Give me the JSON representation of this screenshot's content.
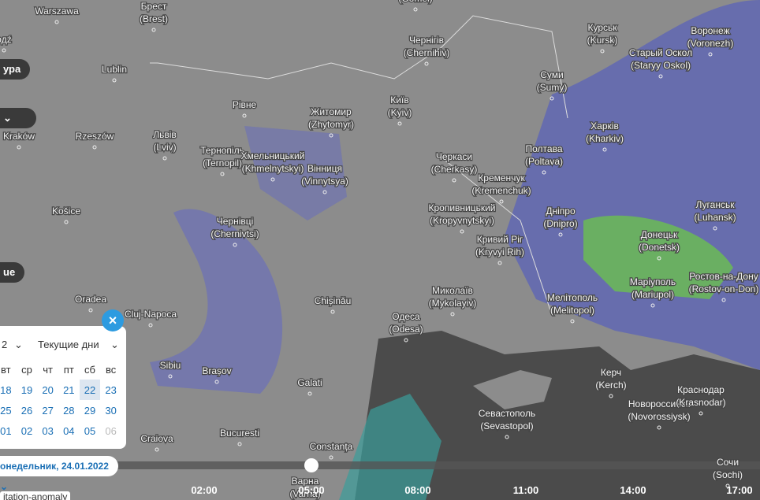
{
  "map": {
    "cities": [
      {
        "name": "Warszawa"
      },
      {
        "name": "Брест",
        "latin": "(Brest)"
      },
      {
        "name": "Lublin"
      },
      {
        "name": "Rzeszów"
      },
      {
        "name": "Kraków"
      },
      {
        "name": "Košice"
      },
      {
        "name": "Oradea"
      },
      {
        "name": "Cluj-Napoca"
      },
      {
        "name": "Sibiu"
      },
      {
        "name": "Brașov"
      },
      {
        "name": "Craiova"
      },
      {
        "name": "Bucuresti"
      },
      {
        "name": "Galati"
      },
      {
        "name": "Constanța"
      },
      {
        "name": "Chișinău"
      },
      {
        "name": "Варна",
        "latin": "(Varna)"
      },
      {
        "name": "Рівне"
      },
      {
        "name": "Львів",
        "latin": "(Lviv)"
      },
      {
        "name": "Тернопіль",
        "latin": "(Ternopil)"
      },
      {
        "name": "Хмельницький",
        "latin": "(Khmelnytskyi)"
      },
      {
        "name": "Житомир",
        "latin": "(Zhytomyr)"
      },
      {
        "name": "Вінниця",
        "latin": "(Vinnytsya)"
      },
      {
        "name": "Чернівці",
        "latin": "(Chernivtsi)"
      },
      {
        "name": "Київ",
        "latin": "(Kyiv)"
      },
      {
        "name": "Чернігів",
        "latin": "(Chernihiv)"
      },
      {
        "name": "Черкаси",
        "latin": "(Cherkasy)"
      },
      {
        "name": "Кременчук",
        "latin": "(Kremenchuk)"
      },
      {
        "name": "Кропивницький",
        "latin": "(Kropyvnytskyi)"
      },
      {
        "name": "Полтава",
        "latin": "(Poltava)"
      },
      {
        "name": "Суми",
        "latin": "(Sumy)"
      },
      {
        "name": "Курськ",
        "latin": "(Kursk)"
      },
      {
        "name": "Воронеж",
        "latin": "(Voronezh)"
      },
      {
        "name": "Старый Оскол",
        "latin": "(Staryy Oskol)"
      },
      {
        "name": "Харків",
        "latin": "(Kharkiv)"
      },
      {
        "name": "Дніпро",
        "latin": "(Dnipro)"
      },
      {
        "name": "Кривий Ріг",
        "latin": "(Kryvyi Rih)"
      },
      {
        "name": "Миколаїв",
        "latin": "(Mykolayiv)"
      },
      {
        "name": "Одеса",
        "latin": "(Odesa)"
      },
      {
        "name": "Мелітополь",
        "latin": "(Melitopol)"
      },
      {
        "name": "Донецьк",
        "latin": "(Donetsk)"
      },
      {
        "name": "Луганськ",
        "latin": "(Luhansk)"
      },
      {
        "name": "Маріуполь",
        "latin": "(Mariupol)"
      },
      {
        "name": "Ростов-на-Дону",
        "latin": "(Rostov-on-Don)"
      },
      {
        "name": "Керч",
        "latin": "(Kerch)"
      },
      {
        "name": "Севастополь",
        "latin": "(Sevastopol)"
      },
      {
        "name": "Новороссийск",
        "latin": "(Novorossiysk)"
      },
      {
        "name": "Краснодар",
        "latin": "(Krasnodar)"
      },
      {
        "name": "Сочи",
        "latin": "(Sochi)"
      },
      {
        "name": "(Gomel)"
      },
      {
        "name": "одź"
      }
    ]
  },
  "controls": {
    "layer_button": "ура",
    "menu_button": "ue"
  },
  "calendar": {
    "month": "2",
    "range": "Текущие дни",
    "weekdays": [
      "вт",
      "ср",
      "чт",
      "пт",
      "сб",
      "вс"
    ],
    "weeks": [
      [
        "18",
        "19",
        "20",
        "21",
        "22",
        "23"
      ],
      [
        "25",
        "26",
        "27",
        "28",
        "29",
        "30"
      ],
      [
        "01",
        "02",
        "03",
        "04",
        "05",
        "06"
      ]
    ]
  },
  "date_selector": "онедельник, 24.01.2022",
  "timeline": {
    "times": [
      "02:00",
      "05:00",
      "08:00",
      "11:00",
      "14:00",
      "17:00"
    ]
  },
  "tooltip": "itation-anomaly"
}
